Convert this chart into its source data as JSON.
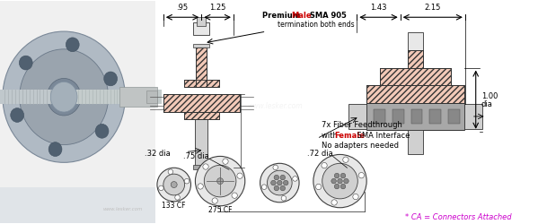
{
  "bg_color": "#ffffff",
  "pink_fill": "#f2c9b8",
  "gray_light": "#e8e8e8",
  "gray_mid": "#d0d0d0",
  "gray_dark": "#a8a8a8",
  "gray_darker": "#888888",
  "red_label": "#cc0000",
  "magenta_label": "#cc00cc",
  "dim_color": "#000000",
  "label_fontsize": 6.0,
  "small_fontsize": 5.5,
  "label_095": ".95",
  "label_125": "1.25",
  "label_143": "1.43",
  "label_215": "2.15",
  "label_100": "1.00",
  "label_dia": "dia",
  "label_032": ".32 dia",
  "label_075": ".75 dia",
  "label_072": ".72 dia",
  "note1a": "Premium ",
  "note1b": "Male",
  "note1c": " SMA 905",
  "note2": "termination both ends",
  "note7a": "7x Fiber Feedthrough",
  "note7b": "with ",
  "note7c": "Female",
  "note7d": " SMA Interface",
  "note7e": "No adapters needed",
  "label_133cf": "133 CF",
  "label_275cf": "275 CF",
  "label_ca": "* CA = Connectors Attached",
  "watermark": "www.lesker.com"
}
